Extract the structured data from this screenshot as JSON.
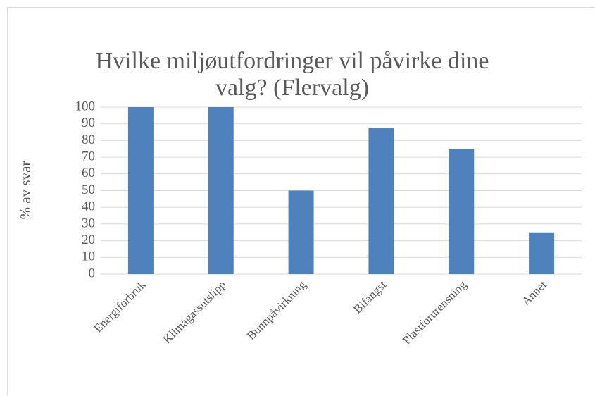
{
  "chart_data": {
    "type": "bar",
    "title": "Hvilke miljøutfordringer vil påvirke dine valg? (Flervalg)",
    "ylabel": "% av svar",
    "categories": [
      "Energiforbruk",
      "Klimagassutslipp",
      "Bunnpåvirkning",
      "Bifangst",
      "Plastforurensning",
      "Annet"
    ],
    "values": [
      100,
      100,
      50,
      87.5,
      75,
      25
    ],
    "color": "#4f81bd",
    "ylim": [
      0,
      100
    ],
    "yticks": [
      0,
      10,
      20,
      30,
      40,
      50,
      60,
      70,
      80,
      90,
      100
    ],
    "grid": true
  }
}
